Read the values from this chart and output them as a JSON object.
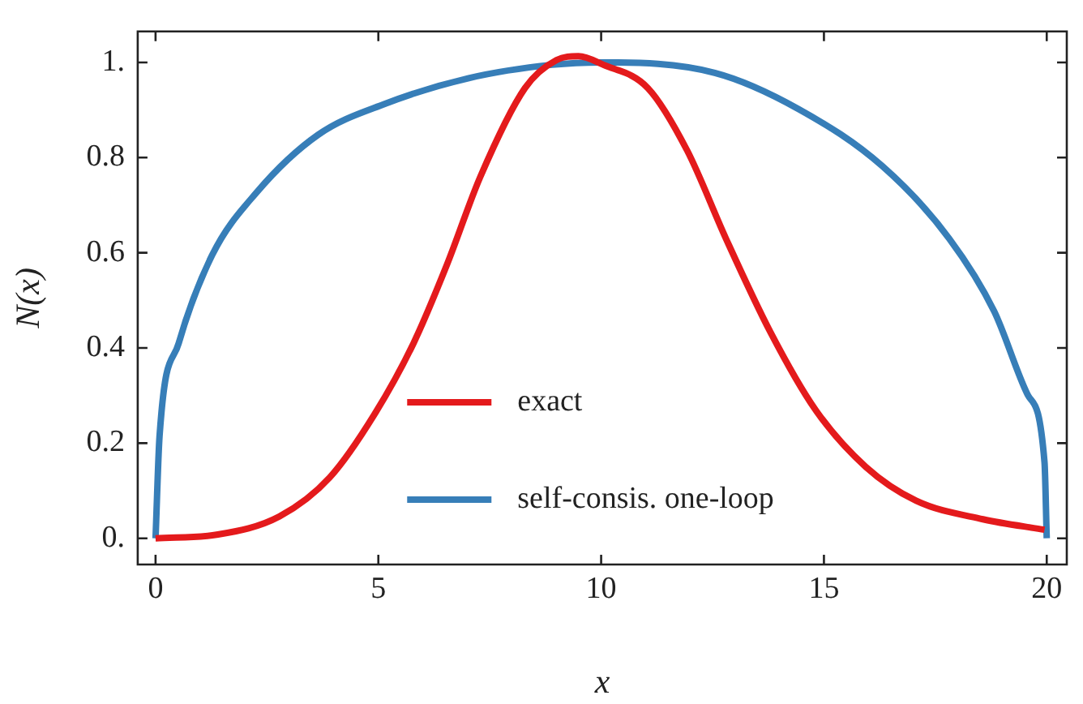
{
  "chart_data": {
    "type": "line",
    "xlabel": "x",
    "ylabel": "N(x)",
    "xlim": [
      -0.4,
      20.45
    ],
    "ylim": [
      -0.055,
      1.065
    ],
    "xticks": [
      0,
      5,
      10,
      15,
      20
    ],
    "yticks": [
      {
        "value": 0,
        "label": "0."
      },
      0.2,
      0.4,
      0.6,
      0.8,
      {
        "value": 1,
        "label": "1."
      }
    ],
    "grid": false,
    "legend": "bottom",
    "marker": "none",
    "line_style": "solid",
    "series": [
      {
        "name": "exact",
        "color": "#e41a1c",
        "x": [
          0,
          1.4,
          2.78,
          3.91,
          4.91,
          5.79,
          6.54,
          7.29,
          8.29,
          9.0,
          9.49,
          10.05,
          11.05,
          11.93,
          12.8,
          13.8,
          14.81,
          15.94,
          17.07,
          18.57,
          19.95
        ],
        "values": [
          0,
          0.008,
          0.046,
          0.128,
          0.26,
          0.41,
          0.575,
          0.76,
          0.946,
          1.005,
          1.013,
          0.995,
          0.946,
          0.815,
          0.63,
          0.433,
          0.27,
          0.15,
          0.079,
          0.04,
          0.018
        ]
      },
      {
        "name": "self-consis. one-loop",
        "color": "#377eb8",
        "x": [
          0,
          0.09,
          0.52,
          1.27,
          2.27,
          3.65,
          5.15,
          7.03,
          8.9,
          10,
          12.55,
          14.43,
          16.31,
          17.81,
          18.82,
          19.57,
          19.95,
          20
        ],
        "values": [
          0,
          0.215,
          0.41,
          0.595,
          0.727,
          0.848,
          0.913,
          0.967,
          0.995,
          1.0,
          0.978,
          0.902,
          0.782,
          0.63,
          0.477,
          0.302,
          0.16,
          0
        ]
      }
    ]
  }
}
